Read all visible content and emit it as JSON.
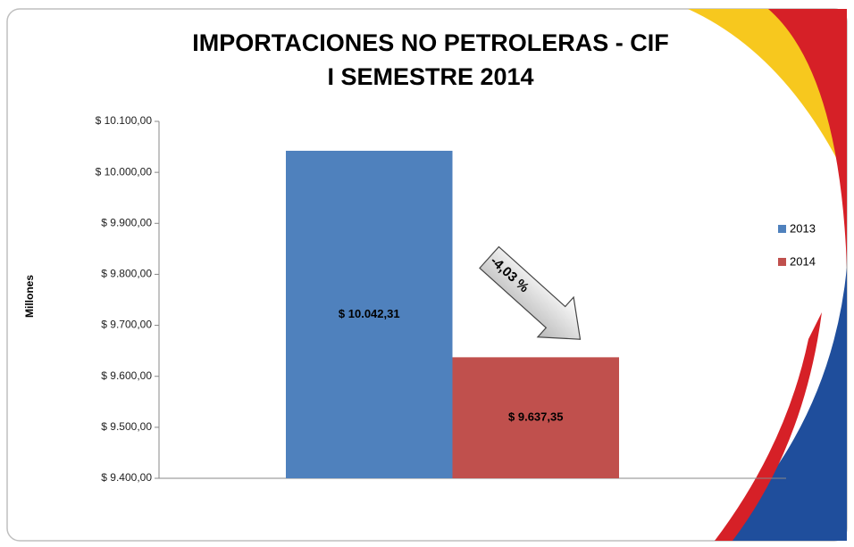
{
  "chart_data": {
    "type": "bar",
    "title": "IMPORTACIONES NO PETROLERAS - CIF",
    "subtitle": "I SEMESTRE 2014",
    "y_label": "Millones",
    "annotation": "-4,03 %",
    "series": [
      {
        "name": "2013",
        "color": "#4f81bd",
        "values": [
          10042.31
        ],
        "value_labels": [
          "$ 10.042,31"
        ]
      },
      {
        "name": "2014",
        "color": "#c0504d",
        "values": [
          9637.35
        ],
        "value_labels": [
          "$ 9.637,35"
        ]
      }
    ],
    "ylim": [
      9400,
      10100
    ],
    "yticks": [
      {
        "value": 9400,
        "label": "$ 9.400,00"
      },
      {
        "value": 9500,
        "label": "$ 9.500,00"
      },
      {
        "value": 9600,
        "label": "$ 9.600,00"
      },
      {
        "value": 9700,
        "label": "$ 9.700,00"
      },
      {
        "value": 9800,
        "label": "$ 9.800,00"
      },
      {
        "value": 9900,
        "label": "$ 9.900,00"
      },
      {
        "value": 10000,
        "label": "$ 10.000,00"
      },
      {
        "value": 10100,
        "label": "$ 10.100,00"
      }
    ],
    "grid": false,
    "legend": "right"
  }
}
